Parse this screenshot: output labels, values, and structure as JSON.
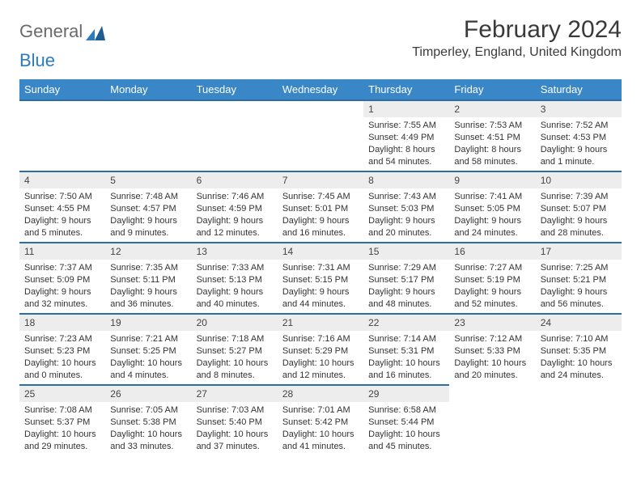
{
  "logo": {
    "word1": "General",
    "word2": "Blue"
  },
  "title": "February 2024",
  "location": "Timperley, England, United Kingdom",
  "colors": {
    "header_bg": "#3a87c7",
    "header_border": "#2d6da3",
    "daynum_bg": "#ededed",
    "logo_gray": "#6a6a6a",
    "logo_blue": "#2c7bbf"
  },
  "weekdays": [
    "Sunday",
    "Monday",
    "Tuesday",
    "Wednesday",
    "Thursday",
    "Friday",
    "Saturday"
  ],
  "grid": [
    [
      null,
      null,
      null,
      null,
      {
        "day": "1",
        "sunrise": "Sunrise: 7:55 AM",
        "sunset": "Sunset: 4:49 PM",
        "daylight": "Daylight: 8 hours and 54 minutes."
      },
      {
        "day": "2",
        "sunrise": "Sunrise: 7:53 AM",
        "sunset": "Sunset: 4:51 PM",
        "daylight": "Daylight: 8 hours and 58 minutes."
      },
      {
        "day": "3",
        "sunrise": "Sunrise: 7:52 AM",
        "sunset": "Sunset: 4:53 PM",
        "daylight": "Daylight: 9 hours and 1 minute."
      }
    ],
    [
      {
        "day": "4",
        "sunrise": "Sunrise: 7:50 AM",
        "sunset": "Sunset: 4:55 PM",
        "daylight": "Daylight: 9 hours and 5 minutes."
      },
      {
        "day": "5",
        "sunrise": "Sunrise: 7:48 AM",
        "sunset": "Sunset: 4:57 PM",
        "daylight": "Daylight: 9 hours and 9 minutes."
      },
      {
        "day": "6",
        "sunrise": "Sunrise: 7:46 AM",
        "sunset": "Sunset: 4:59 PM",
        "daylight": "Daylight: 9 hours and 12 minutes."
      },
      {
        "day": "7",
        "sunrise": "Sunrise: 7:45 AM",
        "sunset": "Sunset: 5:01 PM",
        "daylight": "Daylight: 9 hours and 16 minutes."
      },
      {
        "day": "8",
        "sunrise": "Sunrise: 7:43 AM",
        "sunset": "Sunset: 5:03 PM",
        "daylight": "Daylight: 9 hours and 20 minutes."
      },
      {
        "day": "9",
        "sunrise": "Sunrise: 7:41 AM",
        "sunset": "Sunset: 5:05 PM",
        "daylight": "Daylight: 9 hours and 24 minutes."
      },
      {
        "day": "10",
        "sunrise": "Sunrise: 7:39 AM",
        "sunset": "Sunset: 5:07 PM",
        "daylight": "Daylight: 9 hours and 28 minutes."
      }
    ],
    [
      {
        "day": "11",
        "sunrise": "Sunrise: 7:37 AM",
        "sunset": "Sunset: 5:09 PM",
        "daylight": "Daylight: 9 hours and 32 minutes."
      },
      {
        "day": "12",
        "sunrise": "Sunrise: 7:35 AM",
        "sunset": "Sunset: 5:11 PM",
        "daylight": "Daylight: 9 hours and 36 minutes."
      },
      {
        "day": "13",
        "sunrise": "Sunrise: 7:33 AM",
        "sunset": "Sunset: 5:13 PM",
        "daylight": "Daylight: 9 hours and 40 minutes."
      },
      {
        "day": "14",
        "sunrise": "Sunrise: 7:31 AM",
        "sunset": "Sunset: 5:15 PM",
        "daylight": "Daylight: 9 hours and 44 minutes."
      },
      {
        "day": "15",
        "sunrise": "Sunrise: 7:29 AM",
        "sunset": "Sunset: 5:17 PM",
        "daylight": "Daylight: 9 hours and 48 minutes."
      },
      {
        "day": "16",
        "sunrise": "Sunrise: 7:27 AM",
        "sunset": "Sunset: 5:19 PM",
        "daylight": "Daylight: 9 hours and 52 minutes."
      },
      {
        "day": "17",
        "sunrise": "Sunrise: 7:25 AM",
        "sunset": "Sunset: 5:21 PM",
        "daylight": "Daylight: 9 hours and 56 minutes."
      }
    ],
    [
      {
        "day": "18",
        "sunrise": "Sunrise: 7:23 AM",
        "sunset": "Sunset: 5:23 PM",
        "daylight": "Daylight: 10 hours and 0 minutes."
      },
      {
        "day": "19",
        "sunrise": "Sunrise: 7:21 AM",
        "sunset": "Sunset: 5:25 PM",
        "daylight": "Daylight: 10 hours and 4 minutes."
      },
      {
        "day": "20",
        "sunrise": "Sunrise: 7:18 AM",
        "sunset": "Sunset: 5:27 PM",
        "daylight": "Daylight: 10 hours and 8 minutes."
      },
      {
        "day": "21",
        "sunrise": "Sunrise: 7:16 AM",
        "sunset": "Sunset: 5:29 PM",
        "daylight": "Daylight: 10 hours and 12 minutes."
      },
      {
        "day": "22",
        "sunrise": "Sunrise: 7:14 AM",
        "sunset": "Sunset: 5:31 PM",
        "daylight": "Daylight: 10 hours and 16 minutes."
      },
      {
        "day": "23",
        "sunrise": "Sunrise: 7:12 AM",
        "sunset": "Sunset: 5:33 PM",
        "daylight": "Daylight: 10 hours and 20 minutes."
      },
      {
        "day": "24",
        "sunrise": "Sunrise: 7:10 AM",
        "sunset": "Sunset: 5:35 PM",
        "daylight": "Daylight: 10 hours and 24 minutes."
      }
    ],
    [
      {
        "day": "25",
        "sunrise": "Sunrise: 7:08 AM",
        "sunset": "Sunset: 5:37 PM",
        "daylight": "Daylight: 10 hours and 29 minutes."
      },
      {
        "day": "26",
        "sunrise": "Sunrise: 7:05 AM",
        "sunset": "Sunset: 5:38 PM",
        "daylight": "Daylight: 10 hours and 33 minutes."
      },
      {
        "day": "27",
        "sunrise": "Sunrise: 7:03 AM",
        "sunset": "Sunset: 5:40 PM",
        "daylight": "Daylight: 10 hours and 37 minutes."
      },
      {
        "day": "28",
        "sunrise": "Sunrise: 7:01 AM",
        "sunset": "Sunset: 5:42 PM",
        "daylight": "Daylight: 10 hours and 41 minutes."
      },
      {
        "day": "29",
        "sunrise": "Sunrise: 6:58 AM",
        "sunset": "Sunset: 5:44 PM",
        "daylight": "Daylight: 10 hours and 45 minutes."
      },
      null,
      null
    ]
  ]
}
